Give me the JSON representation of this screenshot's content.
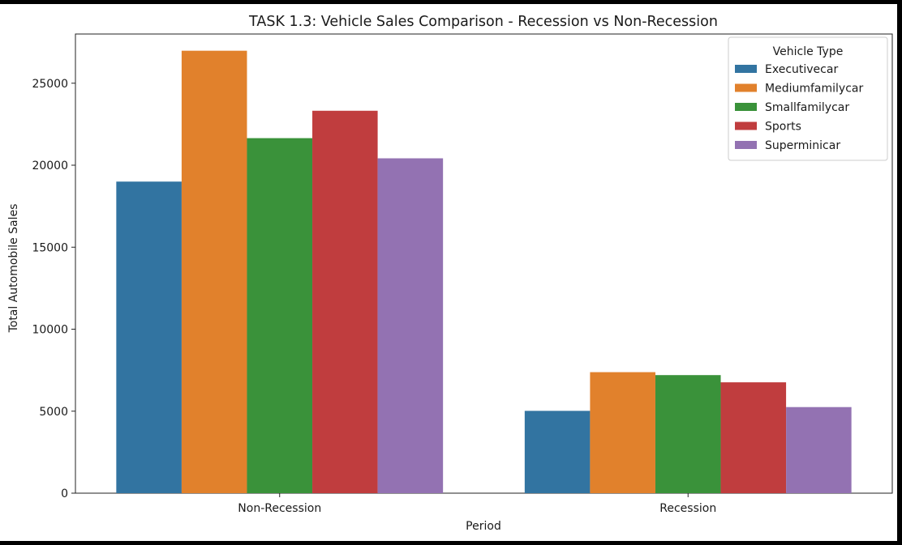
{
  "chart_data": {
    "type": "bar",
    "title": "TASK 1.3: Vehicle Sales Comparison - Recession vs Non-Recession",
    "xlabel": "Period",
    "ylabel": "Total Automobile Sales",
    "categories": [
      "Non-Recession",
      "Recession"
    ],
    "yticks": [
      0,
      5000,
      10000,
      15000,
      20000,
      25000
    ],
    "ylim": [
      0,
      28000
    ],
    "grid": false,
    "legend": {
      "title": "Vehicle Type",
      "placement": "top-right"
    },
    "series": [
      {
        "name": "Executivecar",
        "color": "#3274a1",
        "values": [
          19000,
          5020
        ]
      },
      {
        "name": "Mediumfamilycar",
        "color": "#e1812c",
        "values": [
          26980,
          7380
        ]
      },
      {
        "name": "Smallfamilycar",
        "color": "#3a923a",
        "values": [
          21650,
          7200
        ]
      },
      {
        "name": "Sports",
        "color": "#c03d3e",
        "values": [
          23320,
          6760
        ]
      },
      {
        "name": "Superminicar",
        "color": "#9372b2",
        "values": [
          20420,
          5250
        ]
      }
    ]
  }
}
